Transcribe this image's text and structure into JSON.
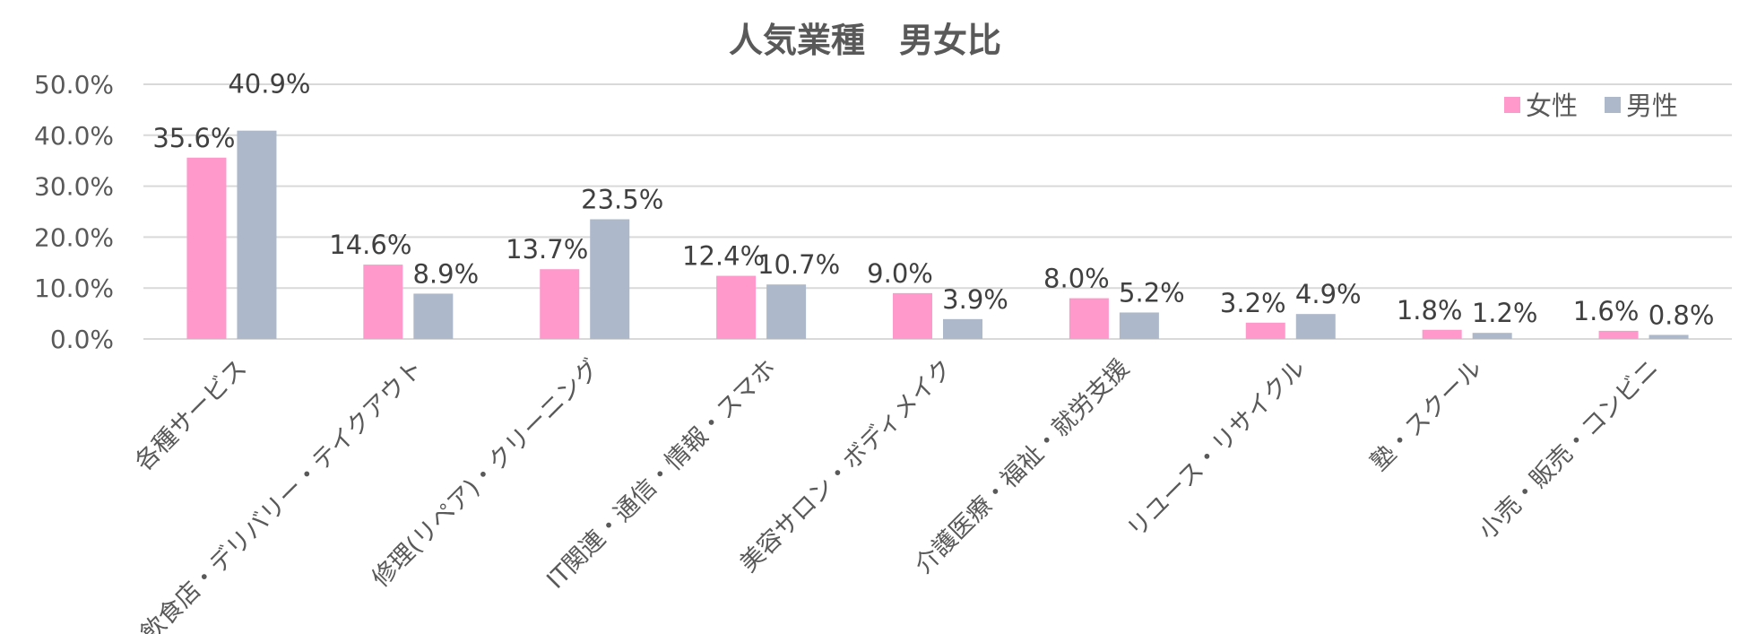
{
  "chart_data": {
    "type": "bar",
    "title": "人気業種　男女比",
    "categories": [
      "各種サービス",
      "飲食店・デリバリー・テイクアウト",
      "修理(リペア)・クリーニング",
      "IT関連・通信・情報・スマホ",
      "美容サロン・ボディメイク",
      "介護医療・福祉・就労支援",
      "リユース・リサイクル",
      "塾・スクール",
      "小売・販売・コンビニ"
    ],
    "series": [
      {
        "name": "女性",
        "color": "#ff99cc",
        "values": [
          35.6,
          14.6,
          13.7,
          12.4,
          9.0,
          8.0,
          3.2,
          1.8,
          1.6
        ],
        "labels": [
          "35.6%",
          "14.6%",
          "13.7%",
          "12.4%",
          "9.0%",
          "8.0%",
          "3.2%",
          "1.8%",
          "1.6%"
        ]
      },
      {
        "name": "男性",
        "color": "#adb9ca",
        "values": [
          40.9,
          8.9,
          23.5,
          10.7,
          3.9,
          5.2,
          4.9,
          1.2,
          0.8
        ],
        "labels": [
          "40.9%",
          "8.9%",
          "23.5%",
          "10.7%",
          "3.9%",
          "5.2%",
          "4.9%",
          "1.2%",
          "0.8%"
        ]
      }
    ],
    "y_ticks": [
      "0.0%",
      "10.0%",
      "20.0%",
      "30.0%",
      "40.0%",
      "50.0%"
    ],
    "ylim": [
      0,
      50
    ],
    "grid": true,
    "legend_position": "top-right"
  }
}
